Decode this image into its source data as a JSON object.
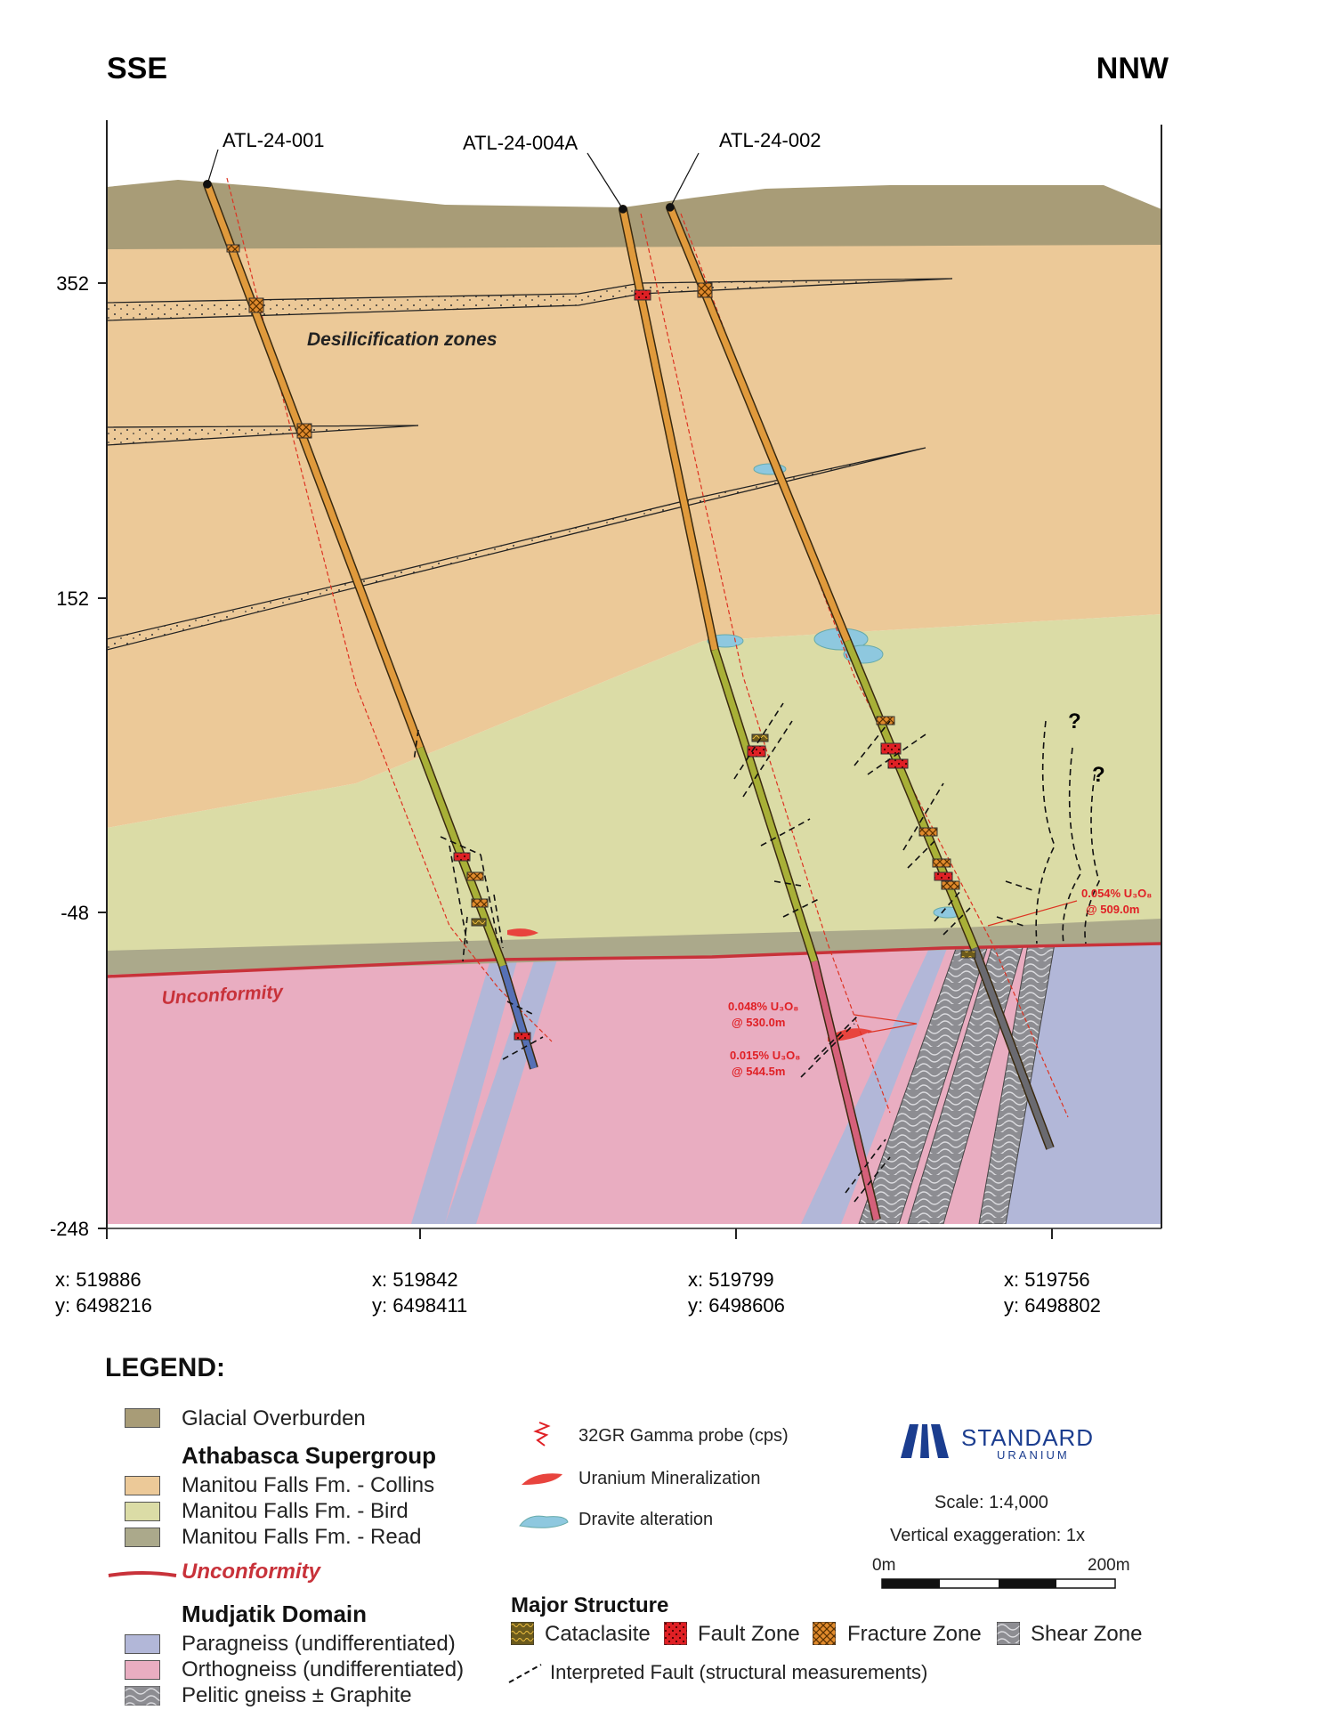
{
  "header": {
    "left": "SSE",
    "right": "NNW"
  },
  "drillholes": [
    {
      "name": "ATL-24-001"
    },
    {
      "name": "ATL-24-004A"
    },
    {
      "name": "ATL-24-002"
    }
  ],
  "elevation_labels": [
    "352",
    "152",
    "-48",
    "-248"
  ],
  "coordinate_labels": [
    {
      "x": "x: 519886",
      "y": "y: 6498216"
    },
    {
      "x": "x: 519842",
      "y": "y: 6498411"
    },
    {
      "x": "x: 519799",
      "y": "y: 6498606"
    },
    {
      "x": "x: 519756",
      "y": "y: 6498802"
    }
  ],
  "section_labels": {
    "desilicification": "Desilicification zones",
    "unconformity": "Unconformity",
    "question": "?"
  },
  "assays": [
    {
      "grade": "0.054% U₃O₈",
      "depth": "@ 509.0m"
    },
    {
      "grade": "0.048% U₃O₈",
      "depth": "@ 530.0m"
    },
    {
      "grade": "0.015% U₃O₈",
      "depth": "@ 544.5m"
    }
  ],
  "legend": {
    "title": "LEGEND:",
    "overburden": "Glacial Overburden",
    "athabasca_title": "Athabasca Supergroup",
    "collins": "Manitou Falls Fm. - Collins",
    "bird": "Manitou Falls Fm. - Bird",
    "read": "Manitou Falls Fm. - Read",
    "unconformity": "Unconformity",
    "mudjatik_title": "Mudjatik Domain",
    "paragneiss": "Paragneiss (undifferentiated)",
    "orthogneiss": "Orthogneiss (undifferentiated)",
    "pelitic": "Pelitic gneiss ± Graphite",
    "gamma": "32GR Gamma probe (cps)",
    "mineralization": "Uranium Mineralization",
    "dravite": "Dravite alteration",
    "structure_title": "Major Structure",
    "cataclasite": "Cataclasite",
    "fault": "Fault Zone",
    "fracture": "Fracture Zone",
    "shear": "Shear Zone",
    "interpreted_fault": "Interpreted Fault (structural measurements)"
  },
  "logo": {
    "name": "STANDARD",
    "sub": "URANIUM"
  },
  "scale": {
    "ratio": "Scale: 1:4,000",
    "vertical": "Vertical exaggeration: 1x",
    "start": "0m",
    "end": "200m"
  },
  "colors": {
    "overburden": "#a89c77",
    "collins": "#ecc998",
    "bird": "#dbdca6",
    "read": "#aba98b",
    "orthogneiss": "#e9adc1",
    "paragneiss": "#b2b7d8",
    "unconformity": "#c8323a",
    "mineralization": "#e8443e",
    "dravite": "#8ec8df"
  }
}
